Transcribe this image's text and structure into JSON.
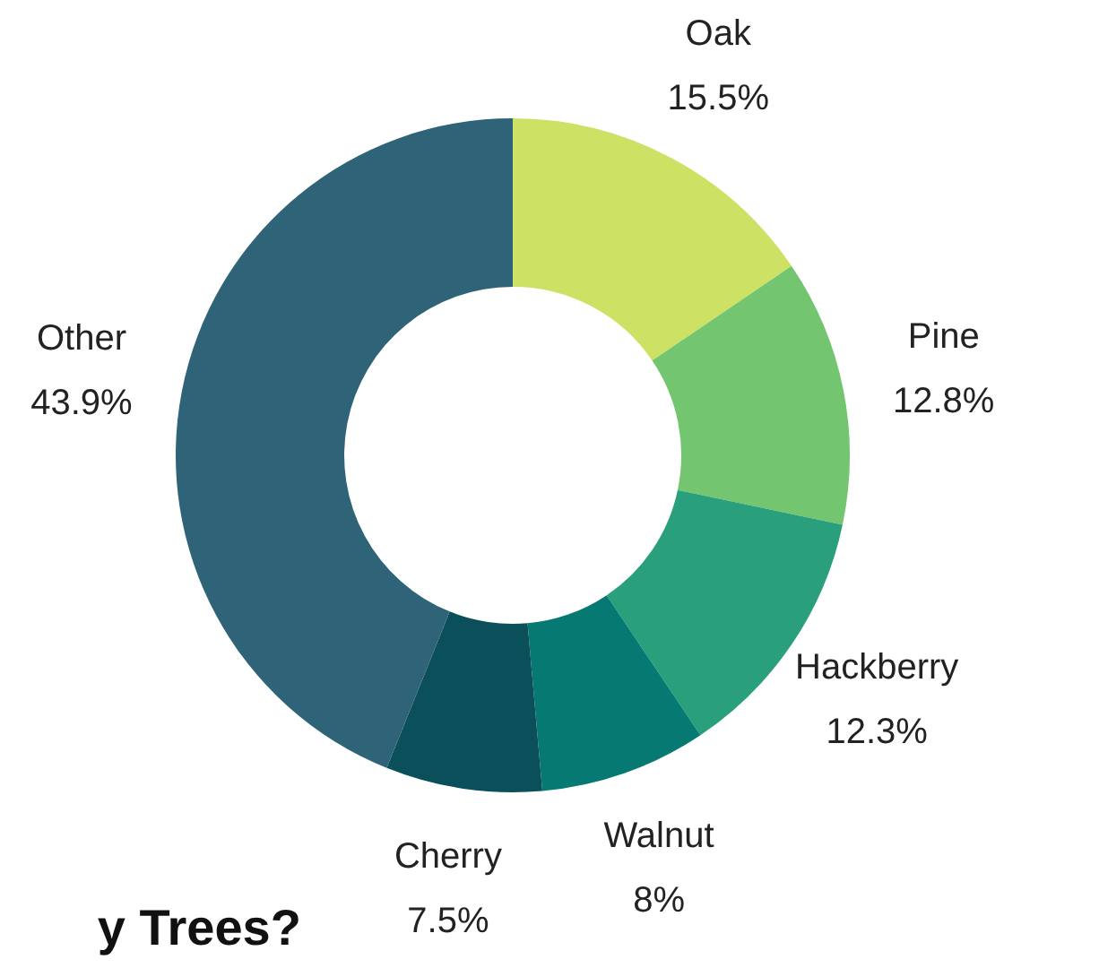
{
  "chart_data": {
    "type": "donut",
    "categories": [
      "Oak",
      "Pine",
      "Hackberry",
      "Walnut",
      "Cherry",
      "Other"
    ],
    "values": [
      15.5,
      12.8,
      12.3,
      8,
      7.5,
      43.9
    ],
    "value_labels": [
      "15.5%",
      "12.8%",
      "12.3%",
      "8%",
      "7.5%",
      "43.9%"
    ],
    "colors": [
      "#cde264",
      "#74c56f",
      "#2a9f7b",
      "#067a72",
      "#0b4f5b",
      "#2f6378"
    ],
    "annotations": [
      "y Trees?"
    ],
    "legend": false
  }
}
